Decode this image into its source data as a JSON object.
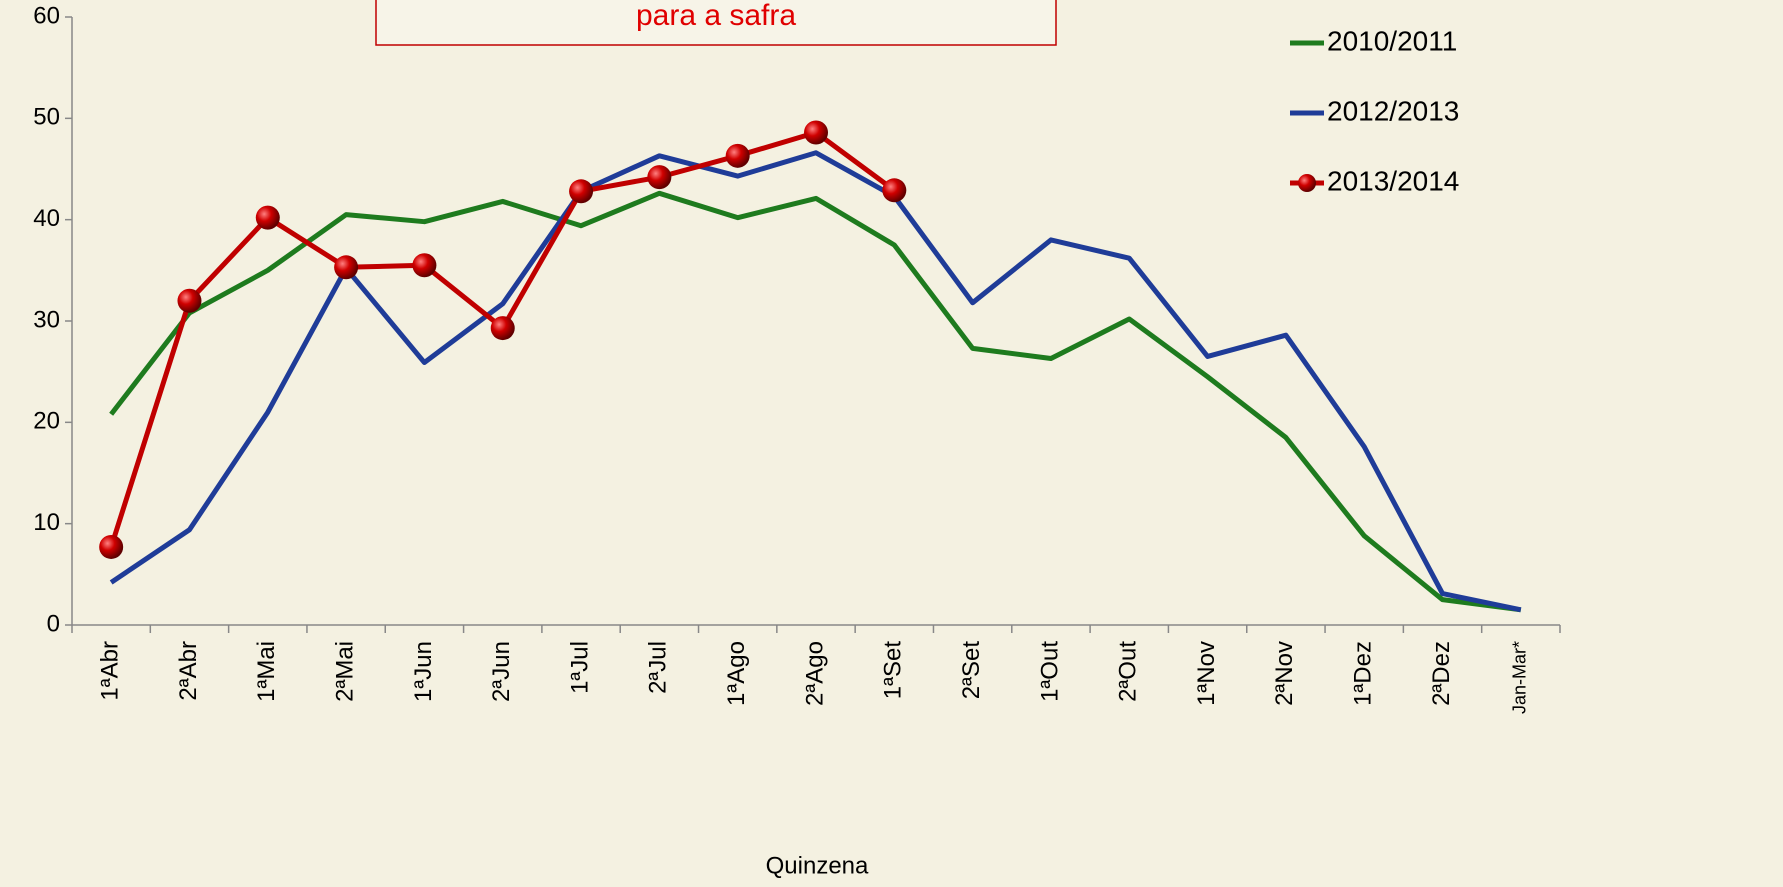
{
  "chart_data": {
    "type": "line",
    "title": "para a safra",
    "x_label": "Quinzena",
    "categories": [
      "1ªAbr",
      "2ªAbr",
      "1ªMai",
      "2ªMai",
      "1ªJun",
      "2ªJun",
      "1ªJul",
      "2ªJul",
      "1ªAgo",
      "2ªAgo",
      "1ªSet",
      "2ªSet",
      "1ªOut",
      "2ªOut",
      "1ªNov",
      "2ªNov",
      "1ªDez",
      "2ªDez",
      "Jan-Mar*"
    ],
    "series": [
      {
        "name": "2010/2011",
        "color": "#1e7b1e",
        "marker": false,
        "values": [
          20.8,
          30.8,
          35.0,
          40.5,
          39.8,
          41.8,
          39.4,
          42.6,
          40.2,
          42.1,
          37.5,
          27.3,
          26.3,
          30.2,
          24.5,
          18.5,
          8.8,
          2.5,
          1.5
        ]
      },
      {
        "name": "2012/2013",
        "color": "#1f3c98",
        "marker": false,
        "values": [
          4.2,
          9.4,
          21.0,
          35.2,
          25.9,
          31.7,
          42.8,
          46.3,
          44.3,
          46.6,
          42.3,
          31.8,
          38.0,
          36.2,
          26.5,
          28.6,
          17.6,
          3.1,
          1.5
        ]
      },
      {
        "name": "2013/2014",
        "color": "#c00000",
        "marker": true,
        "values": [
          7.7,
          32.0,
          40.2,
          35.3,
          35.5,
          29.3,
          42.8,
          44.2,
          46.3,
          48.6,
          42.9,
          null,
          null,
          null,
          null,
          null,
          null,
          null,
          null
        ]
      }
    ],
    "ylim": [
      0,
      60
    ],
    "yticks": [
      0,
      10,
      20,
      30,
      40,
      50,
      60
    ],
    "grid": false,
    "legend": "top-right"
  }
}
